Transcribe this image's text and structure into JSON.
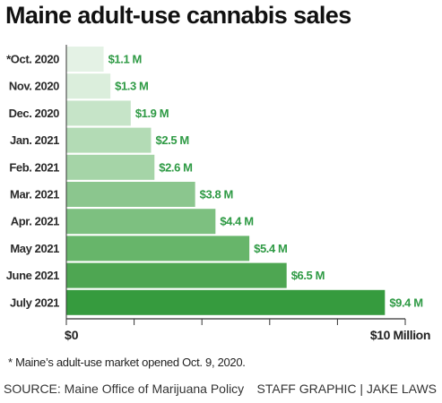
{
  "chart_data": {
    "type": "bar",
    "orientation": "horizontal",
    "title": "Maine adult-use cannabis sales",
    "categories": [
      "*Oct. 2020",
      "Nov. 2020",
      "Dec. 2020",
      "Jan. 2021",
      "Feb. 2021",
      "Mar. 2021",
      "Apr. 2021",
      "May 2021",
      "June 2021",
      "July 2021"
    ],
    "values": [
      1.1,
      1.3,
      1.9,
      2.5,
      2.6,
      3.8,
      4.4,
      5.4,
      6.5,
      9.4
    ],
    "value_labels": [
      "$1.1 M",
      "$1.3 M",
      "$1.9 M",
      "$2.5 M",
      "$2.6 M",
      "$3.8 M",
      "$4.4 M",
      "$5.4 M",
      "$6.5 M",
      "$9.4 M"
    ],
    "unit": "million dollars",
    "xlim": [
      0,
      10
    ],
    "x_tick_labels": [
      "$0",
      "$10 Million"
    ],
    "grid": false,
    "bar_colors": [
      "#e4f2e5",
      "#dbeedc",
      "#c6e4c8",
      "#b3dbb5",
      "#a5d4a7",
      "#8bc68e",
      "#7dc080",
      "#67b56a",
      "#4ea652",
      "#369b3e"
    ],
    "value_label_color": "#2e9a44"
  },
  "footnote": "* Maine’s adult-use market opened Oct. 9, 2020.",
  "source": "SOURCE: Maine Office of Marijuana Policy",
  "credit": "STAFF GRAPHIC | JAKE LAWS"
}
